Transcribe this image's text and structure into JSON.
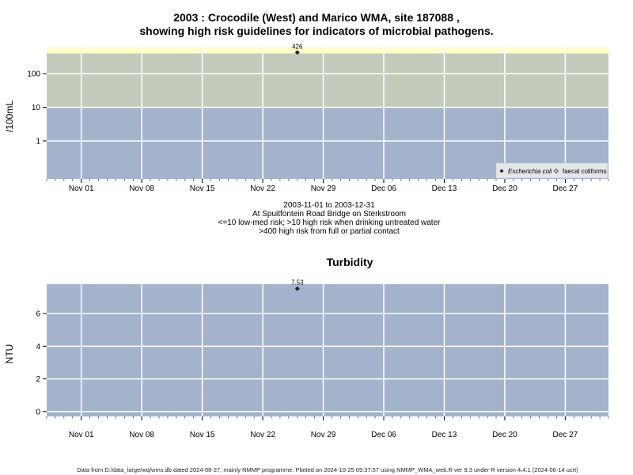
{
  "title_line1": "2003 : Crocodile (West) and Marico WMA, site 187088 ,",
  "title_line2": "showing high risk guidelines for indicators of microbial pathogens.",
  "caption": {
    "date_range": "2003-11-01 to 2003-12-31",
    "location": "At Spuitfontein Road Bridge on Sterkstroom",
    "risk_note1": "<=10 low-med risk; >10 high risk when drinking untreated water",
    "risk_note2": ">400 high risk from full or partial contact"
  },
  "footer": "Data from D:/data_large/wq/wms.db dated 2024-08-27, mainly NMMP programme. Plotted on 2024-10-25 09:37:57 using NMMP_WMA_web.R ver 9.3 under R version 4.4.1 (2024-06-14 ucrt)",
  "colors": {
    "low_risk_band": "#a3b3cb",
    "high_risk_band": "#c3cbbd",
    "contact_band": "#ffffc8",
    "grid": "#ffffff",
    "point": "#222222"
  },
  "chart_data": [
    {
      "type": "scatter",
      "title": "",
      "ylabel": "/100mL",
      "y_scale": "log",
      "xlim": [
        "2003-10-28",
        "2004-01-01"
      ],
      "y_ticks": [
        1,
        10,
        100
      ],
      "y_tick_labels": [
        "1",
        "10",
        "100"
      ],
      "x_ticks": [
        "2003-11-01",
        "2003-11-08",
        "2003-11-15",
        "2003-11-22",
        "2003-11-29",
        "2003-12-06",
        "2003-12-13",
        "2003-12-20",
        "2003-12-27"
      ],
      "x_tick_labels": [
        "Nov 01",
        "Nov 08",
        "Nov 15",
        "Nov 22",
        "Nov 29",
        "Dec 06",
        "Dec 13",
        "Dec 20",
        "Dec 27"
      ],
      "bands": [
        {
          "from": 0,
          "to": 10,
          "color": "#a3b3cb"
        },
        {
          "from": 10,
          "to": 400,
          "color": "#c3cbbd"
        },
        {
          "from": 400,
          "to": 1000,
          "color": "#ffffc8"
        }
      ],
      "legend": {
        "position": "bottom-right",
        "entries": [
          "Escherichia coli",
          "faecal coliforms"
        ]
      },
      "series": [
        {
          "name": "Escherichia coli",
          "marker": "filled-diamond",
          "points": [
            {
              "x": "2003-11-26",
              "y": 426,
              "label": "426"
            }
          ]
        },
        {
          "name": "faecal coliforms",
          "marker": "open-diamond",
          "points": []
        }
      ],
      "grid": true
    },
    {
      "type": "scatter",
      "title": "Turbidity",
      "ylabel": "NTU",
      "xlim": [
        "2003-10-28",
        "2004-01-01"
      ],
      "ylim": [
        -0.3,
        7.8
      ],
      "y_ticks": [
        0,
        2,
        4,
        6
      ],
      "y_tick_labels": [
        "0",
        "2",
        "4",
        "6"
      ],
      "x_ticks": [
        "2003-11-01",
        "2003-11-08",
        "2003-11-15",
        "2003-11-22",
        "2003-11-29",
        "2003-12-06",
        "2003-12-13",
        "2003-12-20",
        "2003-12-27"
      ],
      "x_tick_labels": [
        "Nov 01",
        "Nov 08",
        "Nov 15",
        "Nov 22",
        "Nov 29",
        "Dec 06",
        "Dec 13",
        "Dec 20",
        "Dec 27"
      ],
      "series": [
        {
          "name": "",
          "marker": "filled-diamond",
          "points": [
            {
              "x": "2003-11-26",
              "y": 7.53,
              "label": "7.53"
            }
          ]
        }
      ],
      "grid": true
    }
  ]
}
